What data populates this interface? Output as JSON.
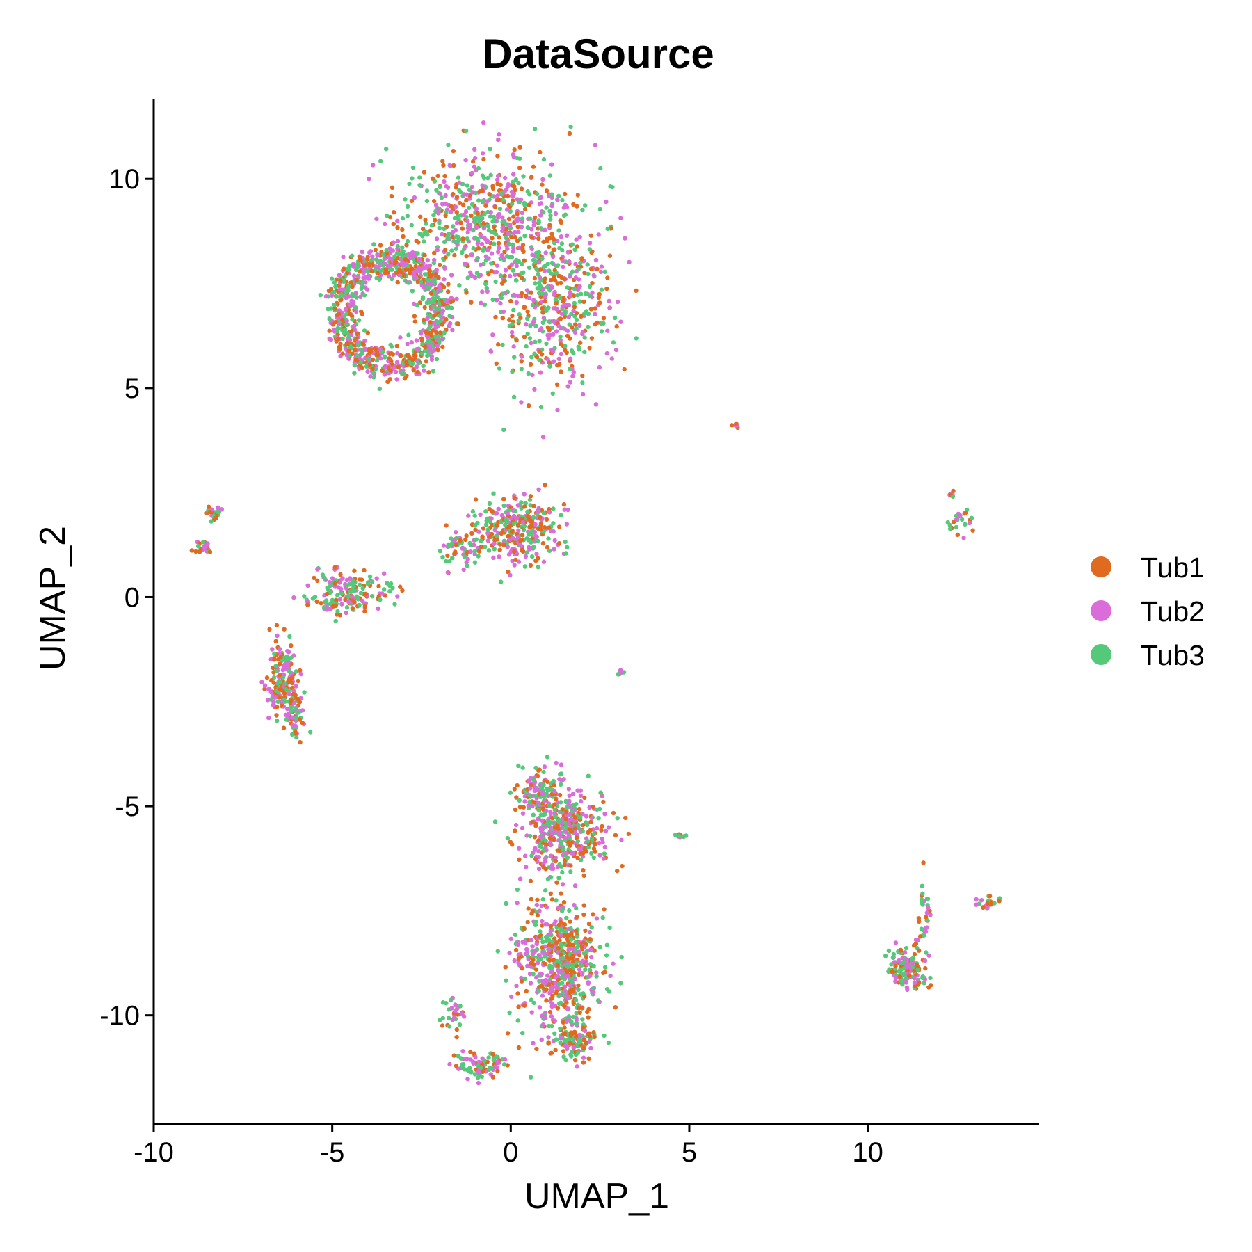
{
  "chart_data": {
    "type": "scatter",
    "title": "DataSource",
    "xlabel": "UMAP_1",
    "ylabel": "UMAP_2",
    "xlim": [
      -10,
      14.8
    ],
    "ylim": [
      -12.6,
      11.9
    ],
    "xticks": [
      "-10",
      "-5",
      "0",
      "5",
      "10"
    ],
    "yticks": [
      "-10",
      "-5",
      "0",
      "5",
      "10"
    ],
    "grid": false,
    "legend_position": "right",
    "series": [
      {
        "name": "Tub1",
        "color": "#E06A1F"
      },
      {
        "name": "Tub2",
        "color": "#DA6DD9"
      },
      {
        "name": "Tub3",
        "color": "#55C97A"
      }
    ],
    "clusters": [
      {
        "center": [
          -3.4,
          6.8
        ],
        "spread": [
          1.6,
          1.5
        ],
        "shape": "ring",
        "count": 900
      },
      {
        "center": [
          -0.6,
          9.0
        ],
        "spread": [
          2.0,
          1.4
        ],
        "count": 620
      },
      {
        "center": [
          1.2,
          7.0
        ],
        "spread": [
          1.4,
          1.7
        ],
        "count": 460
      },
      {
        "center": [
          0.2,
          1.6
        ],
        "spread": [
          1.0,
          0.6
        ],
        "count": 280
      },
      {
        "center": [
          -1.3,
          1.2
        ],
        "spread": [
          0.6,
          0.35
        ],
        "count": 70
      },
      {
        "center": [
          -4.6,
          0.1
        ],
        "spread": [
          1.0,
          0.4
        ],
        "count": 180
      },
      {
        "center": [
          -6.4,
          -2.0
        ],
        "spread": [
          0.35,
          0.8
        ],
        "count": 170
      },
      {
        "center": [
          -6.0,
          -2.8
        ],
        "spread": [
          0.25,
          0.5
        ],
        "count": 50
      },
      {
        "center": [
          -8.6,
          1.2
        ],
        "spread": [
          0.2,
          0.12
        ],
        "count": 22
      },
      {
        "center": [
          -8.3,
          2.0
        ],
        "spread": [
          0.2,
          0.15
        ],
        "count": 22
      },
      {
        "center": [
          1.5,
          -5.6
        ],
        "spread": [
          1.0,
          0.8
        ],
        "count": 420
      },
      {
        "center": [
          0.8,
          -4.6
        ],
        "spread": [
          0.6,
          0.4
        ],
        "count": 100
      },
      {
        "center": [
          1.4,
          -8.7
        ],
        "spread": [
          1.0,
          1.3
        ],
        "count": 600
      },
      {
        "center": [
          1.8,
          -10.6
        ],
        "spread": [
          0.5,
          0.4
        ],
        "count": 120
      },
      {
        "center": [
          -0.8,
          -11.2
        ],
        "spread": [
          0.6,
          0.25
        ],
        "count": 90
      },
      {
        "center": [
          -1.6,
          -10.0
        ],
        "spread": [
          0.3,
          0.3
        ],
        "count": 30
      },
      {
        "center": [
          11.1,
          -8.9
        ],
        "spread": [
          0.45,
          0.45
        ],
        "count": 150
      },
      {
        "center": [
          11.6,
          -7.5
        ],
        "spread": [
          0.15,
          0.6
        ],
        "count": 30
      },
      {
        "center": [
          13.3,
          -7.3
        ],
        "spread": [
          0.25,
          0.15
        ],
        "count": 20
      },
      {
        "center": [
          12.6,
          1.8
        ],
        "spread": [
          0.35,
          0.25
        ],
        "count": 24
      },
      {
        "center": [
          12.35,
          2.45
        ],
        "spread": [
          0.08,
          0.08
        ],
        "count": 8
      },
      {
        "center": [
          6.3,
          4.1
        ],
        "spread": [
          0.06,
          0.06
        ],
        "count": 8
      },
      {
        "center": [
          3.1,
          -1.8
        ],
        "spread": [
          0.06,
          0.06
        ],
        "count": 7
      },
      {
        "center": [
          4.7,
          -5.7
        ],
        "spread": [
          0.18,
          0.05
        ],
        "count": 10
      }
    ]
  }
}
